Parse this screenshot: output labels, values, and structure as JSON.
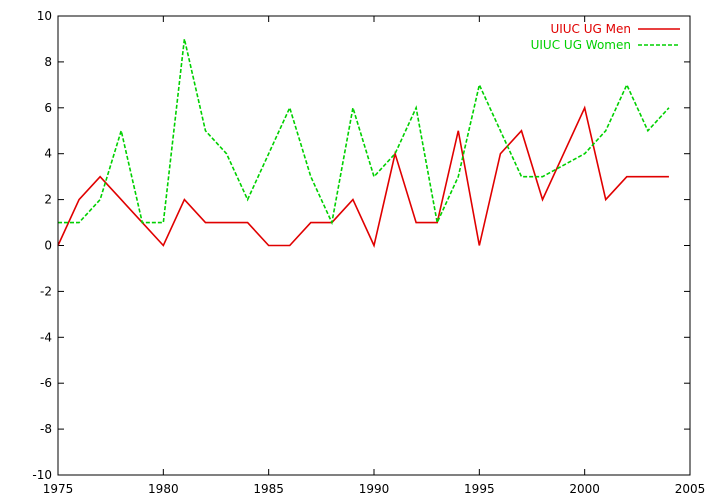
{
  "chart_data": {
    "type": "line",
    "title": "",
    "xlabel": "",
    "ylabel": "",
    "xlim": [
      1975,
      2005
    ],
    "ylim": [
      -10,
      10
    ],
    "xticks": [
      1975,
      1980,
      1985,
      1990,
      1995,
      2000,
      2005
    ],
    "yticks": [
      -10,
      -8,
      -6,
      -4,
      -2,
      0,
      2,
      4,
      6,
      8,
      10
    ],
    "grid": false,
    "legend_position": "top-right",
    "x": [
      1975,
      1976,
      1977,
      1978,
      1979,
      1980,
      1981,
      1982,
      1983,
      1984,
      1985,
      1986,
      1987,
      1988,
      1989,
      1990,
      1991,
      1992,
      1993,
      1994,
      1995,
      1996,
      1997,
      1998,
      1999,
      2000,
      2001,
      2002,
      2003,
      2004
    ],
    "series": [
      {
        "name": "UIUC UG Men",
        "color": "#e00000",
        "dash": "solid",
        "values": [
          0,
          2,
          3,
          2,
          1,
          0,
          2,
          1,
          1,
          1,
          0,
          0,
          1,
          1,
          2,
          0,
          4,
          1,
          1,
          5,
          0,
          4,
          5,
          2,
          4,
          6,
          2,
          3,
          3,
          3
        ]
      },
      {
        "name": "UIUC UG Women",
        "color": "#00d000",
        "dash": "dashed",
        "values": [
          1,
          1,
          2,
          5,
          1,
          1,
          9,
          5,
          4,
          2,
          4,
          6,
          3,
          1,
          6,
          3,
          4,
          6,
          1,
          3,
          7,
          5,
          3,
          3,
          3.5,
          4,
          5,
          7,
          5,
          6
        ]
      }
    ]
  }
}
